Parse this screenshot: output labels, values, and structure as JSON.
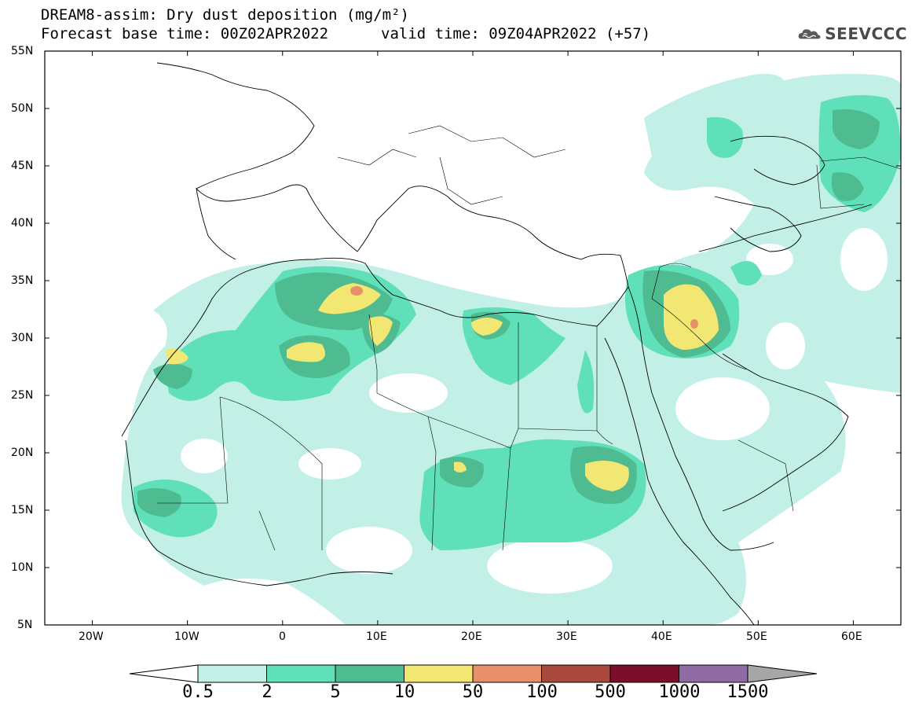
{
  "header": {
    "title_line1": "DREAM8-assim: Dry dust deposition (mg/m²)",
    "title_line2": "Forecast base time: 00Z02APR2022",
    "valid_time": "valid time: 09Z04APR2022 (+57)",
    "logo_text": "SEEVCCC",
    "logo_icon": "cloud-icon"
  },
  "map": {
    "lon_range": [
      -25,
      65
    ],
    "lat_range": [
      5,
      55
    ],
    "lat_ticks": [
      "55N",
      "50N",
      "45N",
      "40N",
      "35N",
      "30N",
      "25N",
      "20N",
      "15N",
      "10N",
      "5N"
    ],
    "lon_ticks": [
      "20W",
      "10W",
      "0",
      "10E",
      "20E",
      "30E",
      "40E",
      "50E",
      "60E"
    ]
  },
  "colorbar": {
    "labels": [
      "0.5",
      "2",
      "5",
      "10",
      "50",
      "100",
      "500",
      "1000",
      "1500"
    ],
    "colors": [
      "#c2f0e6",
      "#5fe0b9",
      "#4fbb91",
      "#f2e772",
      "#e8906a",
      "#a9493e",
      "#7b0e2a",
      "#8f6ba3",
      "#a6a6a6"
    ],
    "under_color": "#ffffff",
    "over_color": "#a6a6a6"
  }
}
